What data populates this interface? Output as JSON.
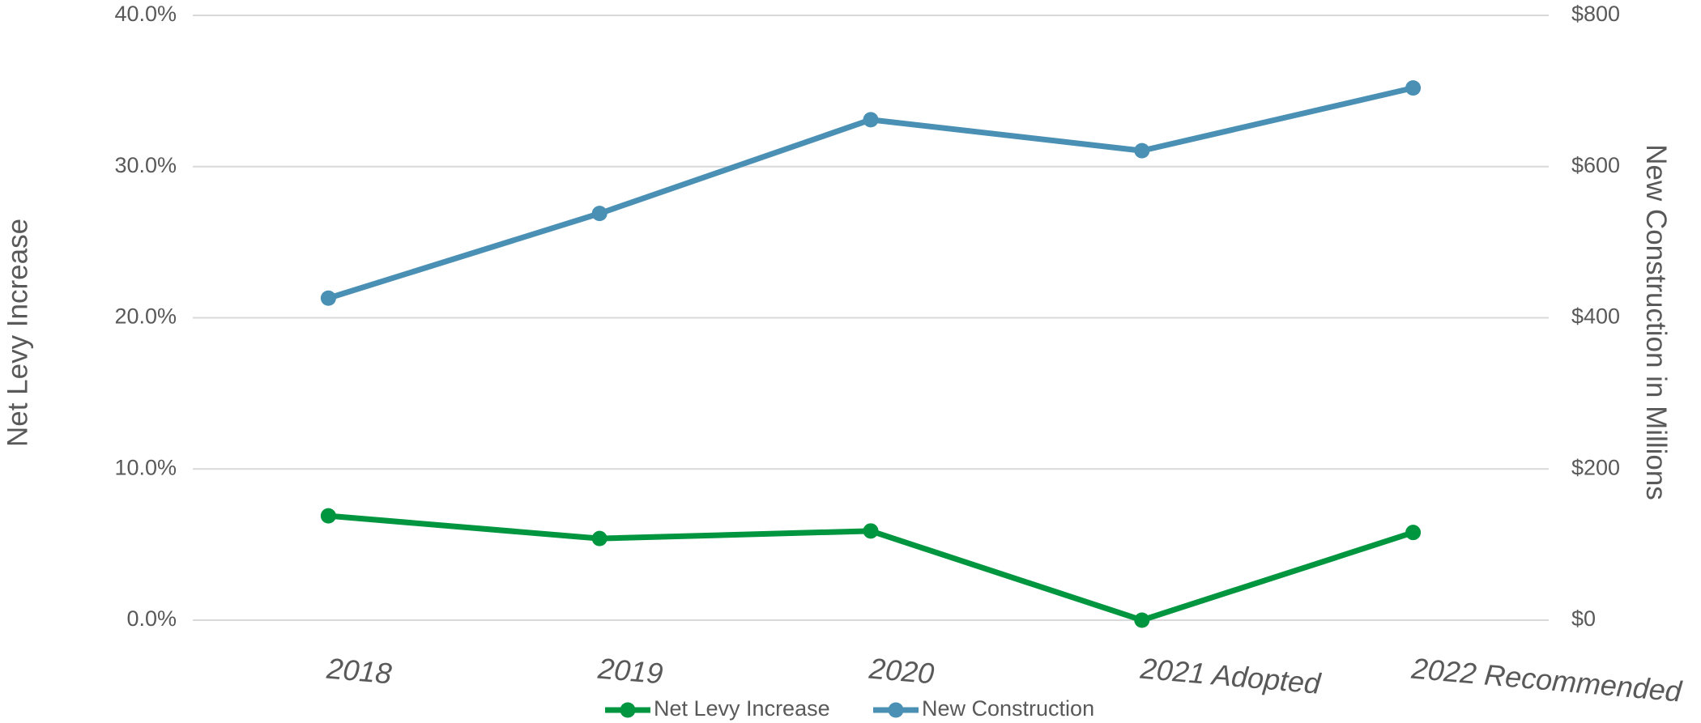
{
  "chart_data": {
    "type": "line",
    "categories": [
      "2018",
      "2019",
      "2020",
      "2021 Adopted",
      "2022 Recommended"
    ],
    "y_label": "Net Levy Increase",
    "y2_label": "New Construction in Millions",
    "ylim": [
      0,
      40
    ],
    "yticks": [
      {
        "value": 0,
        "label": "0.0%"
      },
      {
        "value": 10,
        "label": "10.0%"
      },
      {
        "value": 20,
        "label": "20.0%"
      },
      {
        "value": 30,
        "label": "30.0%"
      },
      {
        "value": 40,
        "label": "40.0%"
      }
    ],
    "y2lim": [
      0,
      800
    ],
    "y2ticks": [
      {
        "value": 0,
        "label": "$0"
      },
      {
        "value": 200,
        "label": "$200"
      },
      {
        "value": 400,
        "label": "$400"
      },
      {
        "value": 600,
        "label": "$600"
      },
      {
        "value": 800,
        "label": "$800"
      }
    ],
    "grid": true,
    "legend": "bottom",
    "series": [
      {
        "name": "Net Levy Increase",
        "color": "#00953f",
        "values": [
          6.9,
          5.4,
          5.9,
          0.0,
          5.8
        ]
      },
      {
        "name": "New Construction",
        "color": "#4a90b4",
        "axis": "y2",
        "values": [
          426,
          538,
          662,
          621,
          704
        ]
      }
    ]
  }
}
